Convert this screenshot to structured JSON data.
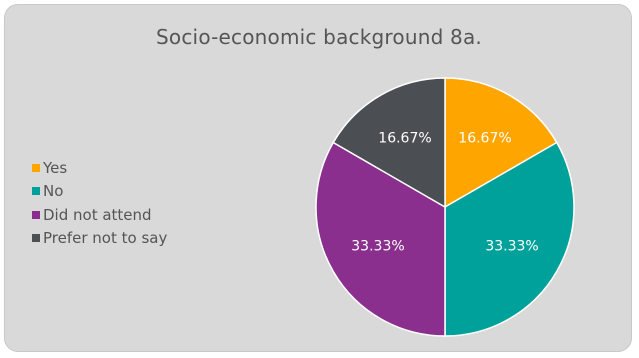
{
  "chart_data": {
    "type": "pie",
    "title": "Socio-economic background 8a.",
    "categories": [
      "Yes",
      "No",
      "Did not attend",
      "Prefer not to say"
    ],
    "values": [
      16.67,
      33.33,
      33.33,
      16.67
    ],
    "labels": [
      "16.67%",
      "33.33%",
      "33.33%",
      "16.67%"
    ],
    "colors": [
      "#ffa500",
      "#00a19a",
      "#8b2f8f",
      "#4b4f54"
    ],
    "legend_position": "left",
    "start_angle_deg": 0,
    "direction": "clockwise"
  }
}
